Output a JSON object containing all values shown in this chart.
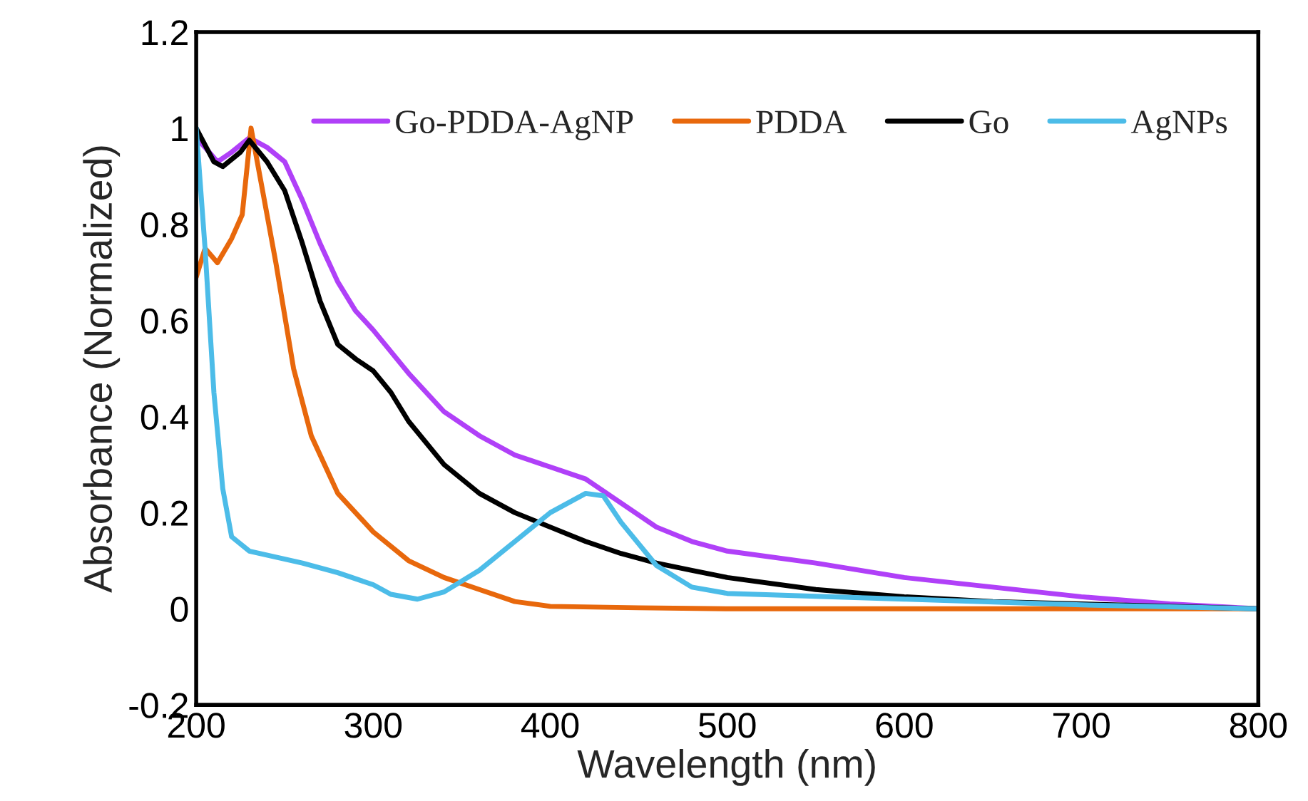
{
  "chart_data": {
    "type": "line",
    "xlabel": "Wavelength (nm)",
    "ylabel": "Absorbance (Normalized)",
    "xlim": [
      200,
      800
    ],
    "xticks": [
      200,
      300,
      400,
      500,
      600,
      700,
      800
    ],
    "ylim": [
      -0.2,
      1.2
    ],
    "yticks": [
      -0.2,
      0,
      0.2,
      0.4,
      0.6,
      0.8,
      1,
      1.2
    ],
    "grid": false,
    "legend": "top right",
    "marker": "none",
    "line_style": "solid",
    "series": [
      {
        "name": "Go-PDDA-AgNP",
        "color": "#b040f8",
        "x": [
          200,
          205,
          212,
          220,
          230,
          240,
          250,
          260,
          270,
          280,
          290,
          300,
          320,
          340,
          360,
          380,
          400,
          420,
          440,
          460,
          480,
          500,
          550,
          600,
          650,
          700,
          750,
          800
        ],
        "values": [
          0.98,
          0.96,
          0.93,
          0.95,
          0.98,
          0.96,
          0.93,
          0.85,
          0.76,
          0.68,
          0.62,
          0.58,
          0.49,
          0.41,
          0.36,
          0.32,
          0.295,
          0.27,
          0.22,
          0.17,
          0.14,
          0.12,
          0.095,
          0.065,
          0.045,
          0.025,
          0.01,
          0
        ]
      },
      {
        "name": "PDDA",
        "color": "#e8680c",
        "x": [
          200,
          205,
          212,
          220,
          226,
          231,
          236,
          245,
          255,
          265,
          280,
          300,
          320,
          340,
          360,
          380,
          400,
          450,
          500,
          600,
          800
        ],
        "values": [
          0.69,
          0.75,
          0.72,
          0.77,
          0.82,
          1.0,
          0.9,
          0.72,
          0.5,
          0.36,
          0.24,
          0.16,
          0.1,
          0.065,
          0.04,
          0.015,
          0.005,
          0.002,
          0,
          0,
          0
        ]
      },
      {
        "name": "Go",
        "color": "#000000",
        "x": [
          200,
          210,
          215,
          225,
          230,
          240,
          250,
          260,
          270,
          280,
          290,
          300,
          310,
          320,
          340,
          360,
          380,
          400,
          420,
          440,
          460,
          480,
          500,
          550,
          600,
          650,
          700,
          800
        ],
        "values": [
          1.0,
          0.93,
          0.92,
          0.95,
          0.975,
          0.93,
          0.87,
          0.76,
          0.64,
          0.55,
          0.52,
          0.495,
          0.45,
          0.39,
          0.3,
          0.24,
          0.2,
          0.17,
          0.14,
          0.115,
          0.095,
          0.08,
          0.065,
          0.04,
          0.025,
          0.015,
          0.01,
          0
        ]
      },
      {
        "name": "AgNPs",
        "color": "#4cbce8",
        "x": [
          200,
          205,
          210,
          215,
          220,
          230,
          260,
          280,
          300,
          310,
          325,
          340,
          360,
          380,
          400,
          420,
          430,
          440,
          460,
          480,
          500,
          600,
          700,
          800
        ],
        "values": [
          1.0,
          0.75,
          0.45,
          0.25,
          0.15,
          0.12,
          0.095,
          0.075,
          0.05,
          0.03,
          0.02,
          0.035,
          0.08,
          0.14,
          0.2,
          0.24,
          0.235,
          0.18,
          0.09,
          0.045,
          0.032,
          0.02,
          0.008,
          0
        ]
      }
    ]
  }
}
